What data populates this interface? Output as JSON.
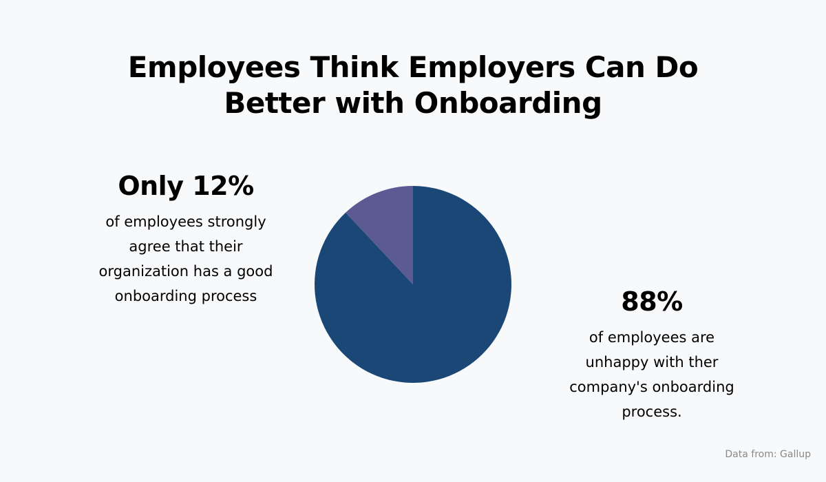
{
  "chart_data": {
    "type": "pie",
    "title": [
      "Employees Think Employers Can Do",
      "Better with Onboarding"
    ],
    "slices": [
      {
        "value": 88,
        "color": "#1a4776"
      },
      {
        "value": 12,
        "color": "#5c5a92"
      }
    ],
    "annotations": [
      {
        "headline": "Only 12%",
        "text": [
          "of employees strongly",
          "agree that their",
          "organization has a good",
          "onboarding process"
        ]
      },
      {
        "headline": "88%",
        "text": [
          "of employees are",
          "unhappy with ther",
          "company's onboarding",
          "process."
        ]
      }
    ],
    "source": "Data from: Gallup"
  }
}
